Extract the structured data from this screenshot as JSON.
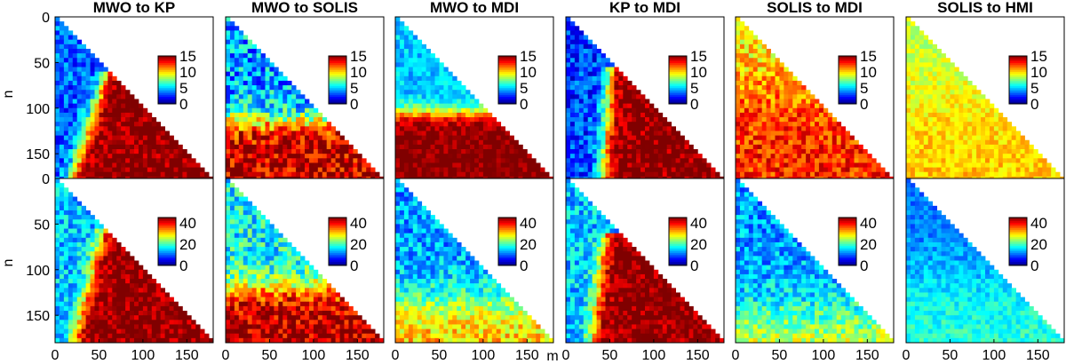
{
  "chart_data": {
    "type": "heatmap",
    "layout": "2 rows x 6 columns",
    "xlabel": "m",
    "ylabel": "n",
    "x_ticks": [
      "0",
      "50",
      "100",
      "150"
    ],
    "y_ticks": [
      "0",
      "50",
      "100",
      "150"
    ],
    "xlim": [
      0,
      180
    ],
    "ylim": [
      180,
      0
    ],
    "colormap": "jet",
    "panel_titles": [
      "MWO to KP",
      "MWO to SOLIS",
      "MWO to MDI",
      "KP to MDI",
      "SOLIS to MDI",
      "SOLIS to HMI"
    ],
    "rows": [
      {
        "colorbar": {
          "ticks": [
            "15",
            "10",
            "5",
            "0"
          ],
          "range": [
            0,
            15
          ]
        },
        "panels": [
          {
            "title": "MWO to KP",
            "pattern": "split",
            "low": 0.22,
            "high": 1.0,
            "boundary_n0": 62,
            "boundary_m0": 58,
            "boundary_m1": 18,
            "noise": 0.12
          },
          {
            "title": "MWO to SOLIS",
            "pattern": "band",
            "low": 0.3,
            "high": 0.95,
            "band_center": 115,
            "band_width": 30,
            "noise": 0.18
          },
          {
            "title": "MWO to MDI",
            "pattern": "band",
            "low": 0.32,
            "high": 1.0,
            "band_center": 105,
            "band_width": 22,
            "noise": 0.08
          },
          {
            "title": "KP to MDI",
            "pattern": "split",
            "low": 0.18,
            "high": 1.0,
            "boundary_n0": 55,
            "boundary_m0": 50,
            "boundary_m1": 42,
            "noise": 0.12
          },
          {
            "title": "SOLIS to MDI",
            "pattern": "band",
            "low": 0.64,
            "high": 0.84,
            "band_center": 80,
            "band_width": 70,
            "noise": 0.12
          },
          {
            "title": "SOLIS to HMI",
            "pattern": "band",
            "low": 0.56,
            "high": 0.68,
            "band_center": 90,
            "band_width": 90,
            "noise": 0.07
          }
        ]
      },
      {
        "colorbar": {
          "ticks": [
            "40",
            "20",
            "0"
          ],
          "range": [
            0,
            45
          ]
        },
        "panels": [
          {
            "title": "MWO to KP",
            "pattern": "split",
            "low": 0.32,
            "high": 1.0,
            "boundary_n0": 55,
            "boundary_m0": 55,
            "boundary_m1": 22,
            "noise": 0.12
          },
          {
            "title": "MWO to SOLIS",
            "pattern": "band",
            "low": 0.38,
            "high": 0.95,
            "band_center": 120,
            "band_width": 35,
            "noise": 0.15
          },
          {
            "title": "MWO to MDI",
            "pattern": "band",
            "low": 0.28,
            "high": 0.7,
            "band_center": 135,
            "band_width": 60,
            "noise": 0.12
          },
          {
            "title": "KP to MDI",
            "pattern": "split",
            "low": 0.32,
            "high": 1.0,
            "boundary_n0": 60,
            "boundary_m0": 45,
            "boundary_m1": 30,
            "noise": 0.12
          },
          {
            "title": "SOLIS to MDI",
            "pattern": "band",
            "low": 0.28,
            "high": 0.62,
            "band_center": 150,
            "band_width": 70,
            "noise": 0.12
          },
          {
            "title": "SOLIS to HMI",
            "pattern": "band",
            "low": 0.24,
            "high": 0.42,
            "band_center": 110,
            "band_width": 90,
            "noise": 0.07
          }
        ]
      }
    ]
  }
}
